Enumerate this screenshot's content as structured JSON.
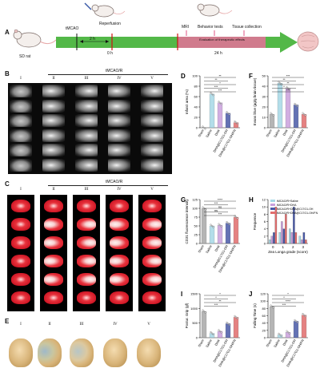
{
  "panels": [
    "A",
    "B",
    "C",
    "D",
    "E",
    "F",
    "G",
    "H",
    "I",
    "J"
  ],
  "timeline": {
    "rat_label": "SD rat",
    "tmcao": "tMCAO",
    "reperfusion": "Reperfusion",
    "interval": "2 h",
    "zero": "0 h",
    "mri": "MRI",
    "behavior": "Behavior tests",
    "tissue": "Tissue collection",
    "evaluation": "Evaluation of therapeutic effects",
    "t24": "24 h"
  },
  "group_header": "tMCAO/R",
  "roman": [
    "I",
    "II",
    "III",
    "IV",
    "V"
  ],
  "groups": [
    "Sham",
    "Saline",
    "DHA",
    "DHA@C17G1-OH",
    "DHA@C17G1-OH/FN"
  ],
  "colors": {
    "sham": "#a9a9a9",
    "saline": "#a6d8e6",
    "dha": "#c9a0dc",
    "oh": "#4a5aa8",
    "fn": "#e06d6d"
  },
  "chart_data": [
    {
      "panel": "D",
      "type": "bar",
      "ylabel": "Infarct area (%)",
      "ylim": [
        0,
        100
      ],
      "yticks": [
        0,
        20,
        40,
        60,
        80,
        100
      ],
      "categories": [
        "Sham",
        "Saline",
        "DHA",
        "DHA@C17G1-OH",
        "DHA@C17G1-OH/FN"
      ],
      "values": [
        0,
        65,
        48,
        28,
        10
      ],
      "annotations": [
        "**",
        "**",
        "*",
        "***",
        "***"
      ]
    },
    {
      "panel": "F",
      "type": "bar",
      "ylabel": "Evans blue (µg/g brain tissue)",
      "ylim": [
        0,
        50
      ],
      "yticks": [
        0,
        10,
        20,
        30,
        40,
        50
      ],
      "categories": [
        "Sham",
        "Saline",
        "DHA",
        "DHA@C17G1-OH",
        "DHA@C17G1-OH/FN"
      ],
      "values": [
        13,
        43,
        38,
        22,
        13
      ],
      "annotations": [
        "***",
        "**",
        "**",
        "*",
        "***"
      ]
    },
    {
      "panel": "G",
      "type": "bar",
      "ylabel": "CD31 fluorescence intensity",
      "ylim": [
        0,
        125
      ],
      "yticks": [
        0,
        25,
        50,
        75,
        100,
        125
      ],
      "categories": [
        "Sham",
        "Saline",
        "DHA",
        "DHA@C17G1-OH",
        "DHA@C17G1-OH/FN"
      ],
      "values": [
        100,
        50,
        52,
        58,
        75
      ],
      "annotations": [
        "****",
        "***",
        "ns",
        "ns",
        "***"
      ]
    },
    {
      "panel": "H",
      "type": "bar",
      "ylabel": "Frequence",
      "xlabel": "Zea Longa grade (score)",
      "ylim": [
        0,
        12
      ],
      "yticks": [
        0,
        2,
        4,
        6,
        8,
        10,
        12
      ],
      "categories": [
        "0",
        "1",
        "2",
        "3"
      ],
      "series": [
        {
          "name": "tMCAO/R+Saline",
          "values": [
            1,
            3,
            4,
            2
          ]
        },
        {
          "name": "tMCAO/R+DHA",
          "values": [
            2,
            6,
            3,
            1
          ]
        },
        {
          "name": "tMCAO/R+DHA@C17G1-OH",
          "values": [
            3,
            4,
            10,
            3
          ]
        },
        {
          "name": "tMCAO/R+DHA@C17G1-OH/FN",
          "values": [
            10,
            8,
            3,
            1
          ]
        }
      ],
      "legend": "top-left"
    },
    {
      "panel": "I",
      "type": "bar",
      "ylabel": "Postur. Grip (gf)",
      "ylim": [
        0,
        1500
      ],
      "yticks": [
        0,
        500,
        1000,
        1500
      ],
      "categories": [
        "Sham",
        "Saline",
        "DHA",
        "DHA@C17G1-OH",
        "DHA@C17G1-OH/FN"
      ],
      "values": [
        900,
        150,
        220,
        480,
        700
      ],
      "annotations": [
        "*",
        "*",
        "**",
        "***"
      ]
    },
    {
      "panel": "J",
      "type": "bar",
      "ylabel": "Falling Time (s)",
      "ylim": [
        0,
        120
      ],
      "yticks": [
        0,
        20,
        40,
        60,
        80,
        100,
        120
      ],
      "categories": [
        "Sham",
        "Saline",
        "DHA",
        "DHA@C17G1-OH",
        "DHA@C17G1-OH/FN"
      ],
      "values": [
        85,
        8,
        15,
        45,
        62
      ],
      "annotations": [
        "*",
        "*",
        "****",
        "***"
      ]
    }
  ]
}
